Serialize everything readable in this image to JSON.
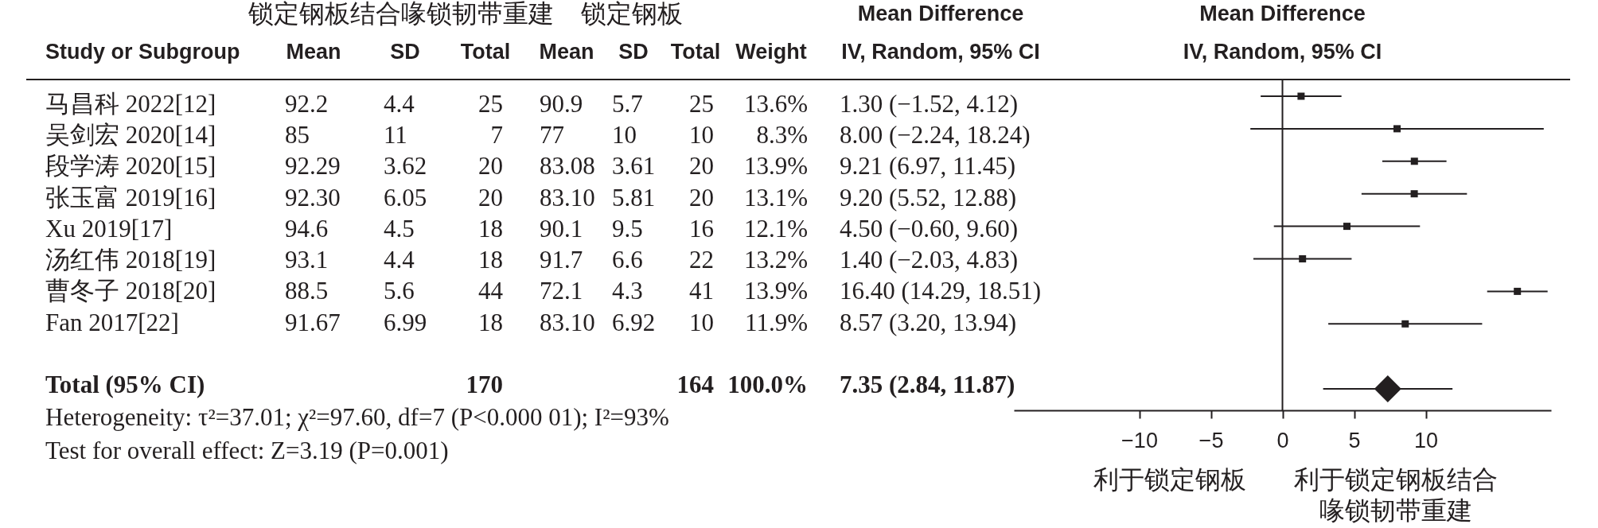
{
  "chart_data": [
    {
      "type": "other",
      "ylabel": "Study or Subgroup",
      "categories": [
        "Mean",
        "SD",
        "Total",
        "Mean",
        "SD",
        "Total",
        "Weight",
        "IV, Random, 95% CI"
      ],
      "y_categories": [
        "马昌科 2022[12]",
        "吴剑宏 2020[14]",
        "段学涛 2020[15]",
        "张玉富 2019[16]",
        "Xu 2019[17]",
        "汤红伟 2018[19]",
        "曹冬子 2018[20]",
        "Fan 2017[22]",
        null,
        "Total (95% CI)"
      ],
      "cell_labels": [
        [
          "92.2",
          "4.4",
          "25",
          "90.9",
          "5.7",
          "25",
          "13.6%",
          "1.30 (−1.52, 4.12)"
        ],
        [
          "85",
          "11",
          "7",
          "77",
          "10",
          "10",
          "8.3%",
          "8.00 (−2.24, 18.24)"
        ],
        [
          "92.29",
          "3.62",
          "20",
          "83.08",
          "3.61",
          "20",
          "13.9%",
          "9.21 (6.97, 11.45)"
        ],
        [
          "92.30",
          "6.05",
          "20",
          "83.10",
          "5.81",
          "20",
          "13.1%",
          "9.20 (5.52, 12.88)"
        ],
        [
          "94.6",
          "4.5",
          "18",
          "90.1",
          "9.5",
          "16",
          "12.1%",
          "4.50 (−0.60, 9.60)"
        ],
        [
          "93.1",
          "4.4",
          "18",
          "91.7",
          "6.6",
          "22",
          "13.2%",
          "1.40 (−2.03, 4.83)"
        ],
        [
          "88.5",
          "5.6",
          "44",
          "72.1",
          "4.3",
          "41",
          "13.9%",
          "16.40 (14.29, 18.51)"
        ],
        [
          "91.67",
          "6.99",
          "18",
          "83.10",
          "6.92",
          "10",
          "11.9%",
          "8.57 (3.20, 13.94)"
        ],
        [
          null,
          null,
          null,
          null,
          null,
          null,
          null,
          null
        ],
        [
          null,
          null,
          "170",
          null,
          null,
          "164",
          "100.0%",
          "7.35 (2.84, 11.87)"
        ]
      ],
      "annotations": [
        "锁定钢板结合喙锁韧带重建",
        "锁定钢板",
        "Mean Difference",
        "Heterogeneity: τ²=37.01; χ²=97.60, df=7 (P<0.000 01); I²=93%",
        "Test for overall effect: Z=3.19 (P=0.001)"
      ]
    },
    {
      "type": "scatter",
      "orientation": "horizontal",
      "title": "Mean Difference",
      "subtitle": "IV, Random, 95% CI",
      "categories": [
        null,
        null,
        null,
        null,
        null,
        null,
        null,
        null,
        null,
        null
      ],
      "series": [
        {
          "color": "#231f20",
          "marker": "square",
          "values": [
            1.3,
            8.0,
            9.21,
            9.2,
            4.5,
            1.4,
            16.4,
            8.57,
            null,
            null
          ],
          "errors": [
            [
              -1.52,
              4.12
            ],
            [
              -2.24,
              18.24
            ],
            [
              6.97,
              11.45
            ],
            [
              5.52,
              12.88
            ],
            [
              -0.6,
              9.6
            ],
            [
              -2.03,
              4.83
            ],
            [
              14.29,
              18.51
            ],
            [
              3.2,
              13.94
            ],
            null,
            null
          ]
        },
        {
          "color": "#231f20",
          "marker": "diamond",
          "values": [
            null,
            null,
            null,
            null,
            null,
            null,
            null,
            null,
            null,
            7.35
          ],
          "errors": [
            null,
            null,
            null,
            null,
            null,
            null,
            null,
            null,
            null,
            [
              2.84,
              11.87
            ]
          ]
        }
      ],
      "xlim": [
        -18.75,
        18.75
      ],
      "xticks": [
        -10,
        -5,
        0,
        5,
        10
      ],
      "tick_labels": "x",
      "ref_lines": [
        {
          "axis": "x",
          "value": 0
        }
      ],
      "annotations": [
        "利于锁定钢板",
        "利于锁定钢板结合喙锁韧带重建"
      ]
    }
  ]
}
